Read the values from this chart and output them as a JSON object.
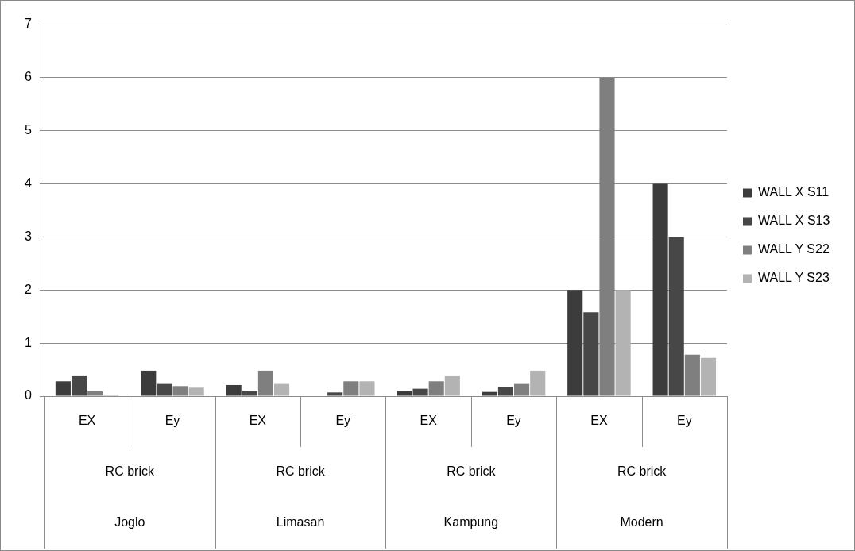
{
  "chart_data": {
    "type": "bar",
    "categories": [
      "EX",
      "Ey",
      "EX",
      "Ey",
      "EX",
      "Ey",
      "EX",
      "Ey"
    ],
    "series": [
      {
        "name": "WALL X S11",
        "color": "#3c3c3c",
        "values": [
          0.28,
          0.48,
          0.21,
          0,
          0.1,
          0.08,
          2,
          4
        ]
      },
      {
        "name": "WALL X S13",
        "color": "#474747",
        "values": [
          0.39,
          0.23,
          0.1,
          0.07,
          0.14,
          0.17,
          1.58,
          3
        ]
      },
      {
        "name": "WALL Y S22",
        "color": "#7f7f7f",
        "values": [
          0.09,
          0.19,
          0.48,
          0.28,
          0.28,
          0.23,
          6,
          0.78
        ]
      },
      {
        "name": "WALL Y S23",
        "color": "#b3b3b3",
        "values": [
          0.03,
          0.16,
          0.23,
          0.28,
          0.39,
          0.48,
          2,
          0.72
        ]
      }
    ],
    "ylim": [
      0,
      7
    ],
    "yticks": [
      0,
      1,
      2,
      3,
      4,
      5,
      6,
      7
    ],
    "annotations": [
      "RC brick",
      "RC brick",
      "RC brick",
      "RC brick",
      "Joglo",
      "Limasan",
      "Kampung",
      "Modern"
    ],
    "grid": "y",
    "legend": "right"
  }
}
